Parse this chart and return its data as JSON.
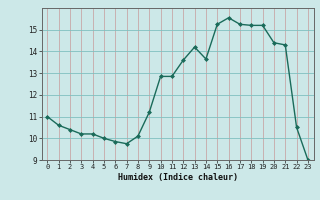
{
  "x": [
    0,
    1,
    2,
    3,
    4,
    5,
    6,
    7,
    8,
    9,
    10,
    11,
    12,
    13,
    14,
    15,
    16,
    17,
    18,
    19,
    20,
    21,
    22,
    23
  ],
  "y": [
    11.0,
    10.6,
    10.4,
    10.2,
    10.2,
    10.0,
    9.85,
    9.75,
    10.1,
    11.2,
    12.85,
    12.85,
    13.6,
    14.2,
    13.65,
    15.25,
    15.55,
    15.25,
    15.2,
    15.2,
    14.4,
    14.3,
    10.5,
    9.0
  ],
  "xlim": [
    -0.5,
    23.5
  ],
  "ylim": [
    9,
    16
  ],
  "yticks": [
    9,
    10,
    11,
    12,
    13,
    14,
    15
  ],
  "xticks": [
    0,
    1,
    2,
    3,
    4,
    5,
    6,
    7,
    8,
    9,
    10,
    11,
    12,
    13,
    14,
    15,
    16,
    17,
    18,
    19,
    20,
    21,
    22,
    23
  ],
  "xlabel": "Humidex (Indice chaleur)",
  "line_color": "#1a6b5a",
  "marker": "D",
  "marker_size": 2.0,
  "line_width": 1.0,
  "bg_color": "#cce8e8",
  "grid_color_major": "#b0b0b0",
  "grid_color_minor": "#d4c8c8"
}
